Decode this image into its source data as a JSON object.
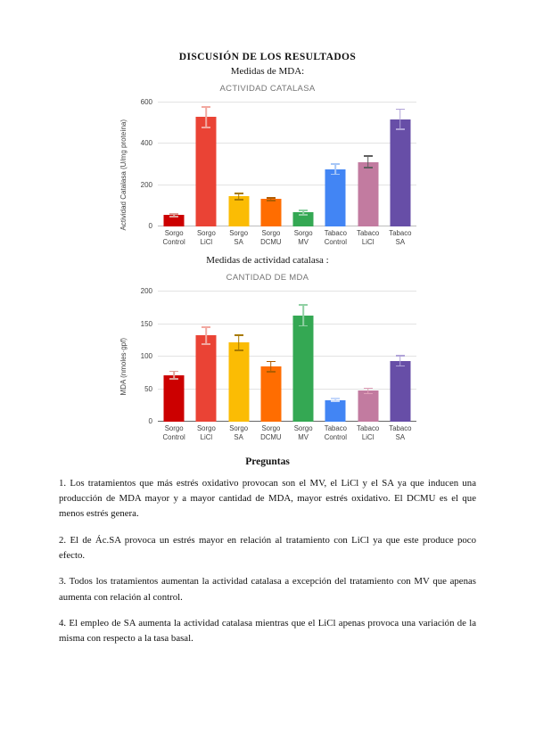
{
  "document": {
    "title": "DISCUSIÓN DE LOS RESULTADOS",
    "subtitle_mda": "Medidas de MDA:",
    "subtitle_catalasa": "Medidas de actividad catalasa :",
    "questions_heading": "Preguntas",
    "paragraphs": [
      "1. Los tratamientos que más estrés oxidativo provocan son el MV, el LiCl y el SA ya que inducen una producción de MDA mayor y a mayor cantidad de MDA, mayor estrés oxidativo. El DCMU es el que menos estrés genera.",
      "2. El de Ác.SA provoca un estrés mayor en relación al tratamiento con LiCl ya que este produce poco efecto.",
      "3. Todos los tratamientos aumentan la actividad catalasa a excepción del tratamiento con MV que apenas aumenta con relación al control.",
      "4. El empleo de SA aumenta la actividad catalasa mientras que el LiCl apenas provoca una variación de la misma con respecto a la tasa basal."
    ]
  },
  "chart_data": [
    {
      "type": "bar",
      "title": "ACTIVIDAD CATALASA",
      "ylabel": "Actividad Catalasa (U/mg proteína)",
      "xlabel": "",
      "ylim": [
        0,
        600
      ],
      "yticks": [
        0,
        200,
        400,
        600
      ],
      "grid": true,
      "legend": "none",
      "categories": [
        "Sorgo Control",
        "Sorgo LiCl",
        "Sorgo SA",
        "Sorgo DCMU",
        "Sorgo MV",
        "Tabaco Control",
        "Tabaco LiCl",
        "Tabaco SA"
      ],
      "values": [
        55,
        530,
        145,
        132,
        67,
        278,
        313,
        520
      ],
      "errors": [
        10,
        53,
        18,
        10,
        13,
        28,
        32,
        52
      ],
      "bar_colors": [
        "#cc0000",
        "#ea4335",
        "#fbbc04",
        "#ff6d01",
        "#34a853",
        "#4285f4",
        "#c27ba0",
        "#674ea7"
      ],
      "error_colors": [
        "#df9f98",
        "#f2a8a0",
        "#a87a00",
        "#b05c00",
        "#90d0a3",
        "#a6c6f7",
        "#5f5f5f",
        "#b0a3d8"
      ],
      "baseline_color": "#bdbdbd"
    },
    {
      "type": "bar",
      "title": "CANTIDAD DE MDA",
      "ylabel": "MDA (nmoles·gpf)",
      "xlabel": "",
      "ylim": [
        0,
        200
      ],
      "yticks": [
        0,
        50,
        100,
        150,
        200
      ],
      "grid": true,
      "legend": "none",
      "categories": [
        "Sorgo Control",
        "Sorgo LiCl",
        "Sorgo SA",
        "Sorgo DCMU",
        "Sorgo MV",
        "Tabaco Control",
        "Tabaco LiCl",
        "Tabaco SA"
      ],
      "values": [
        72,
        133,
        122,
        85,
        164,
        34,
        48,
        94
      ],
      "errors": [
        7,
        14,
        13,
        9,
        17,
        3,
        5,
        9
      ],
      "bar_colors": [
        "#cc0000",
        "#ea4335",
        "#fbbc04",
        "#ff6d01",
        "#34a853",
        "#4285f4",
        "#c27ba0",
        "#674ea7"
      ],
      "error_colors": [
        "#df9f98",
        "#f2a8a0",
        "#a87a00",
        "#b05c00",
        "#90d0a3",
        "#c3d7fb",
        "#e0a0b8",
        "#b0a3d8"
      ],
      "baseline_color": "#666666"
    }
  ]
}
